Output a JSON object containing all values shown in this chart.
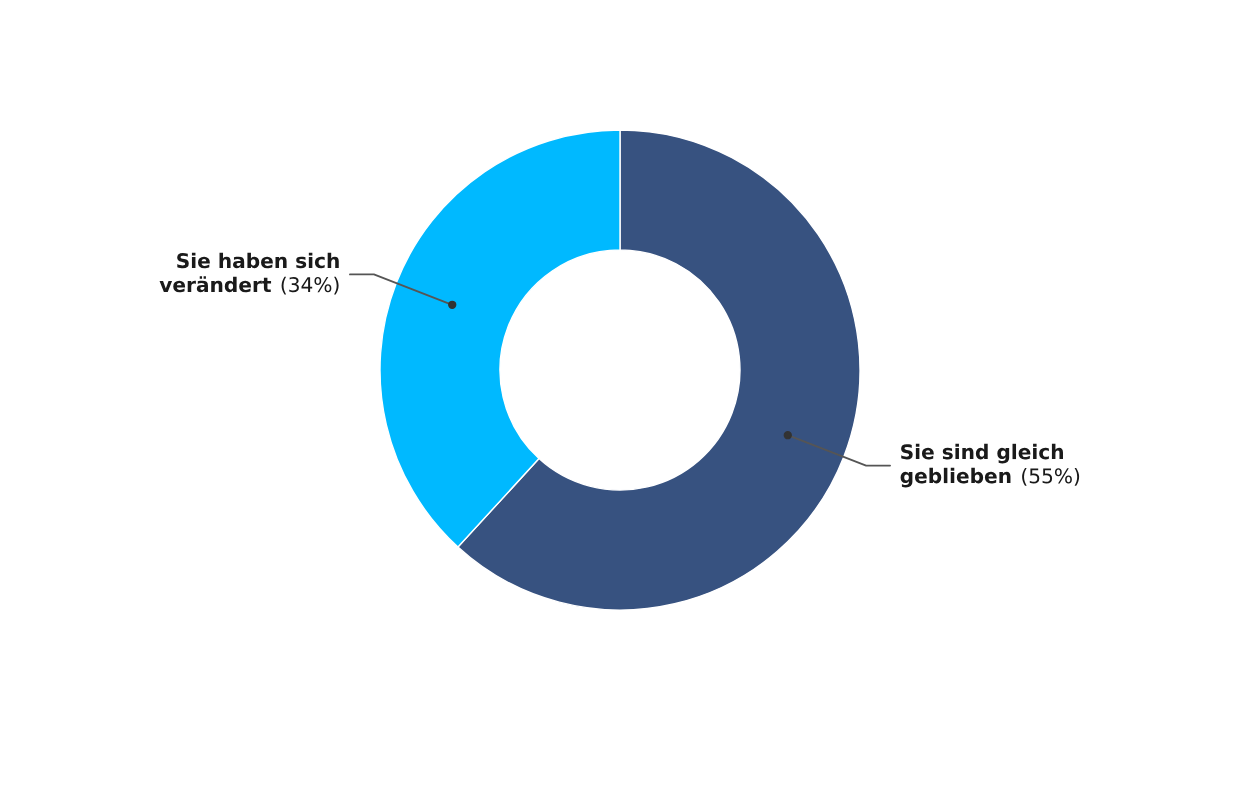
{
  "chart_data": {
    "type": "donut",
    "categories": [
      "Sie sind gleich geblieben",
      "Sie haben sich verändert"
    ],
    "values": [
      55,
      34
    ],
    "colors": [
      "#375280",
      "#00b9ff"
    ],
    "value_labels": [
      "(55%)",
      "(34%)"
    ]
  }
}
